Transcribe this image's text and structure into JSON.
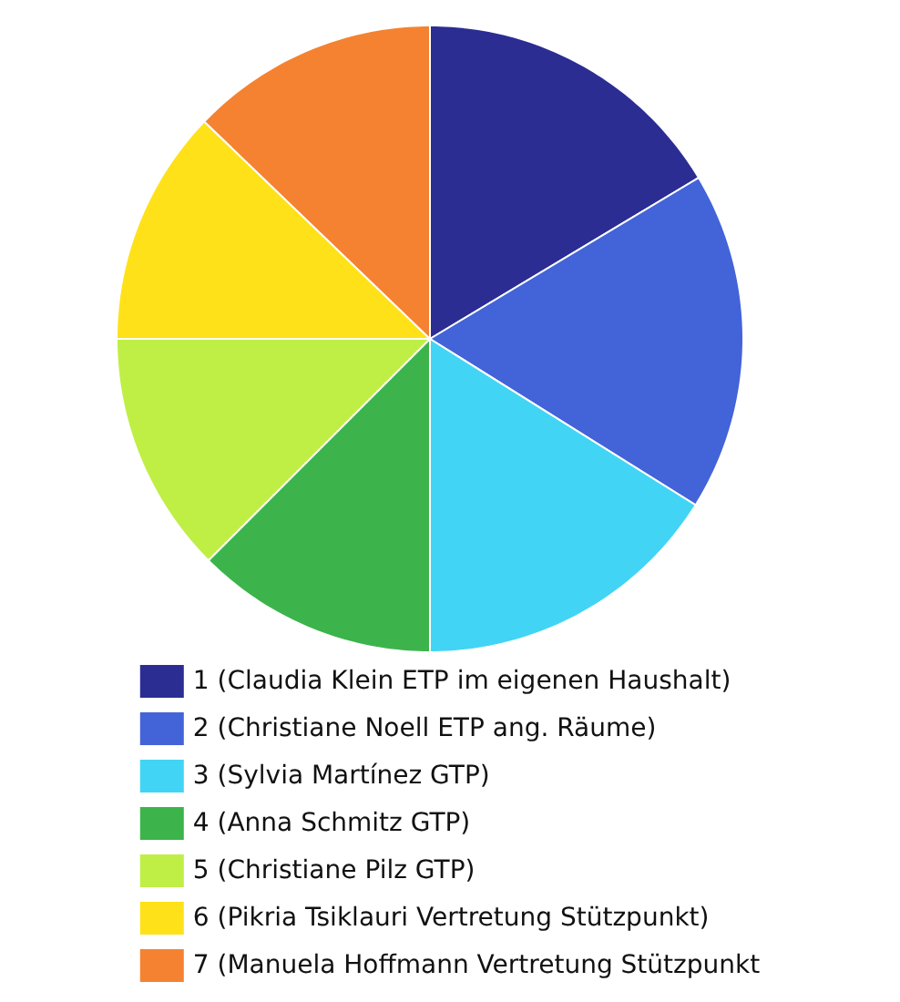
{
  "chart_data": {
    "type": "pie",
    "categories": [
      "1 (Claudia Klein ETP im eigenen Haushalt)",
      "2 (Christiane Noell ETP ang. Räume)",
      "3 (Sylvia Martínez GTP)",
      "4 (Anna Schmitz GTP)",
      "5 (Christiane Pilz GTP)",
      "6 (Pikria Tsiklauri Vertretung Stützpunkt)",
      "7 (Manuela Hoffmann Vertretung Stützpunkt"
    ],
    "values": [
      16.4,
      17.5,
      16.1,
      12.5,
      12.5,
      12.2,
      12.8
    ],
    "colors": [
      "#2b2d93",
      "#4363d8",
      "#42d4f4",
      "#3cb44b",
      "#bfef45",
      "#ffe119",
      "#f58231"
    ],
    "legend": "bottom"
  }
}
